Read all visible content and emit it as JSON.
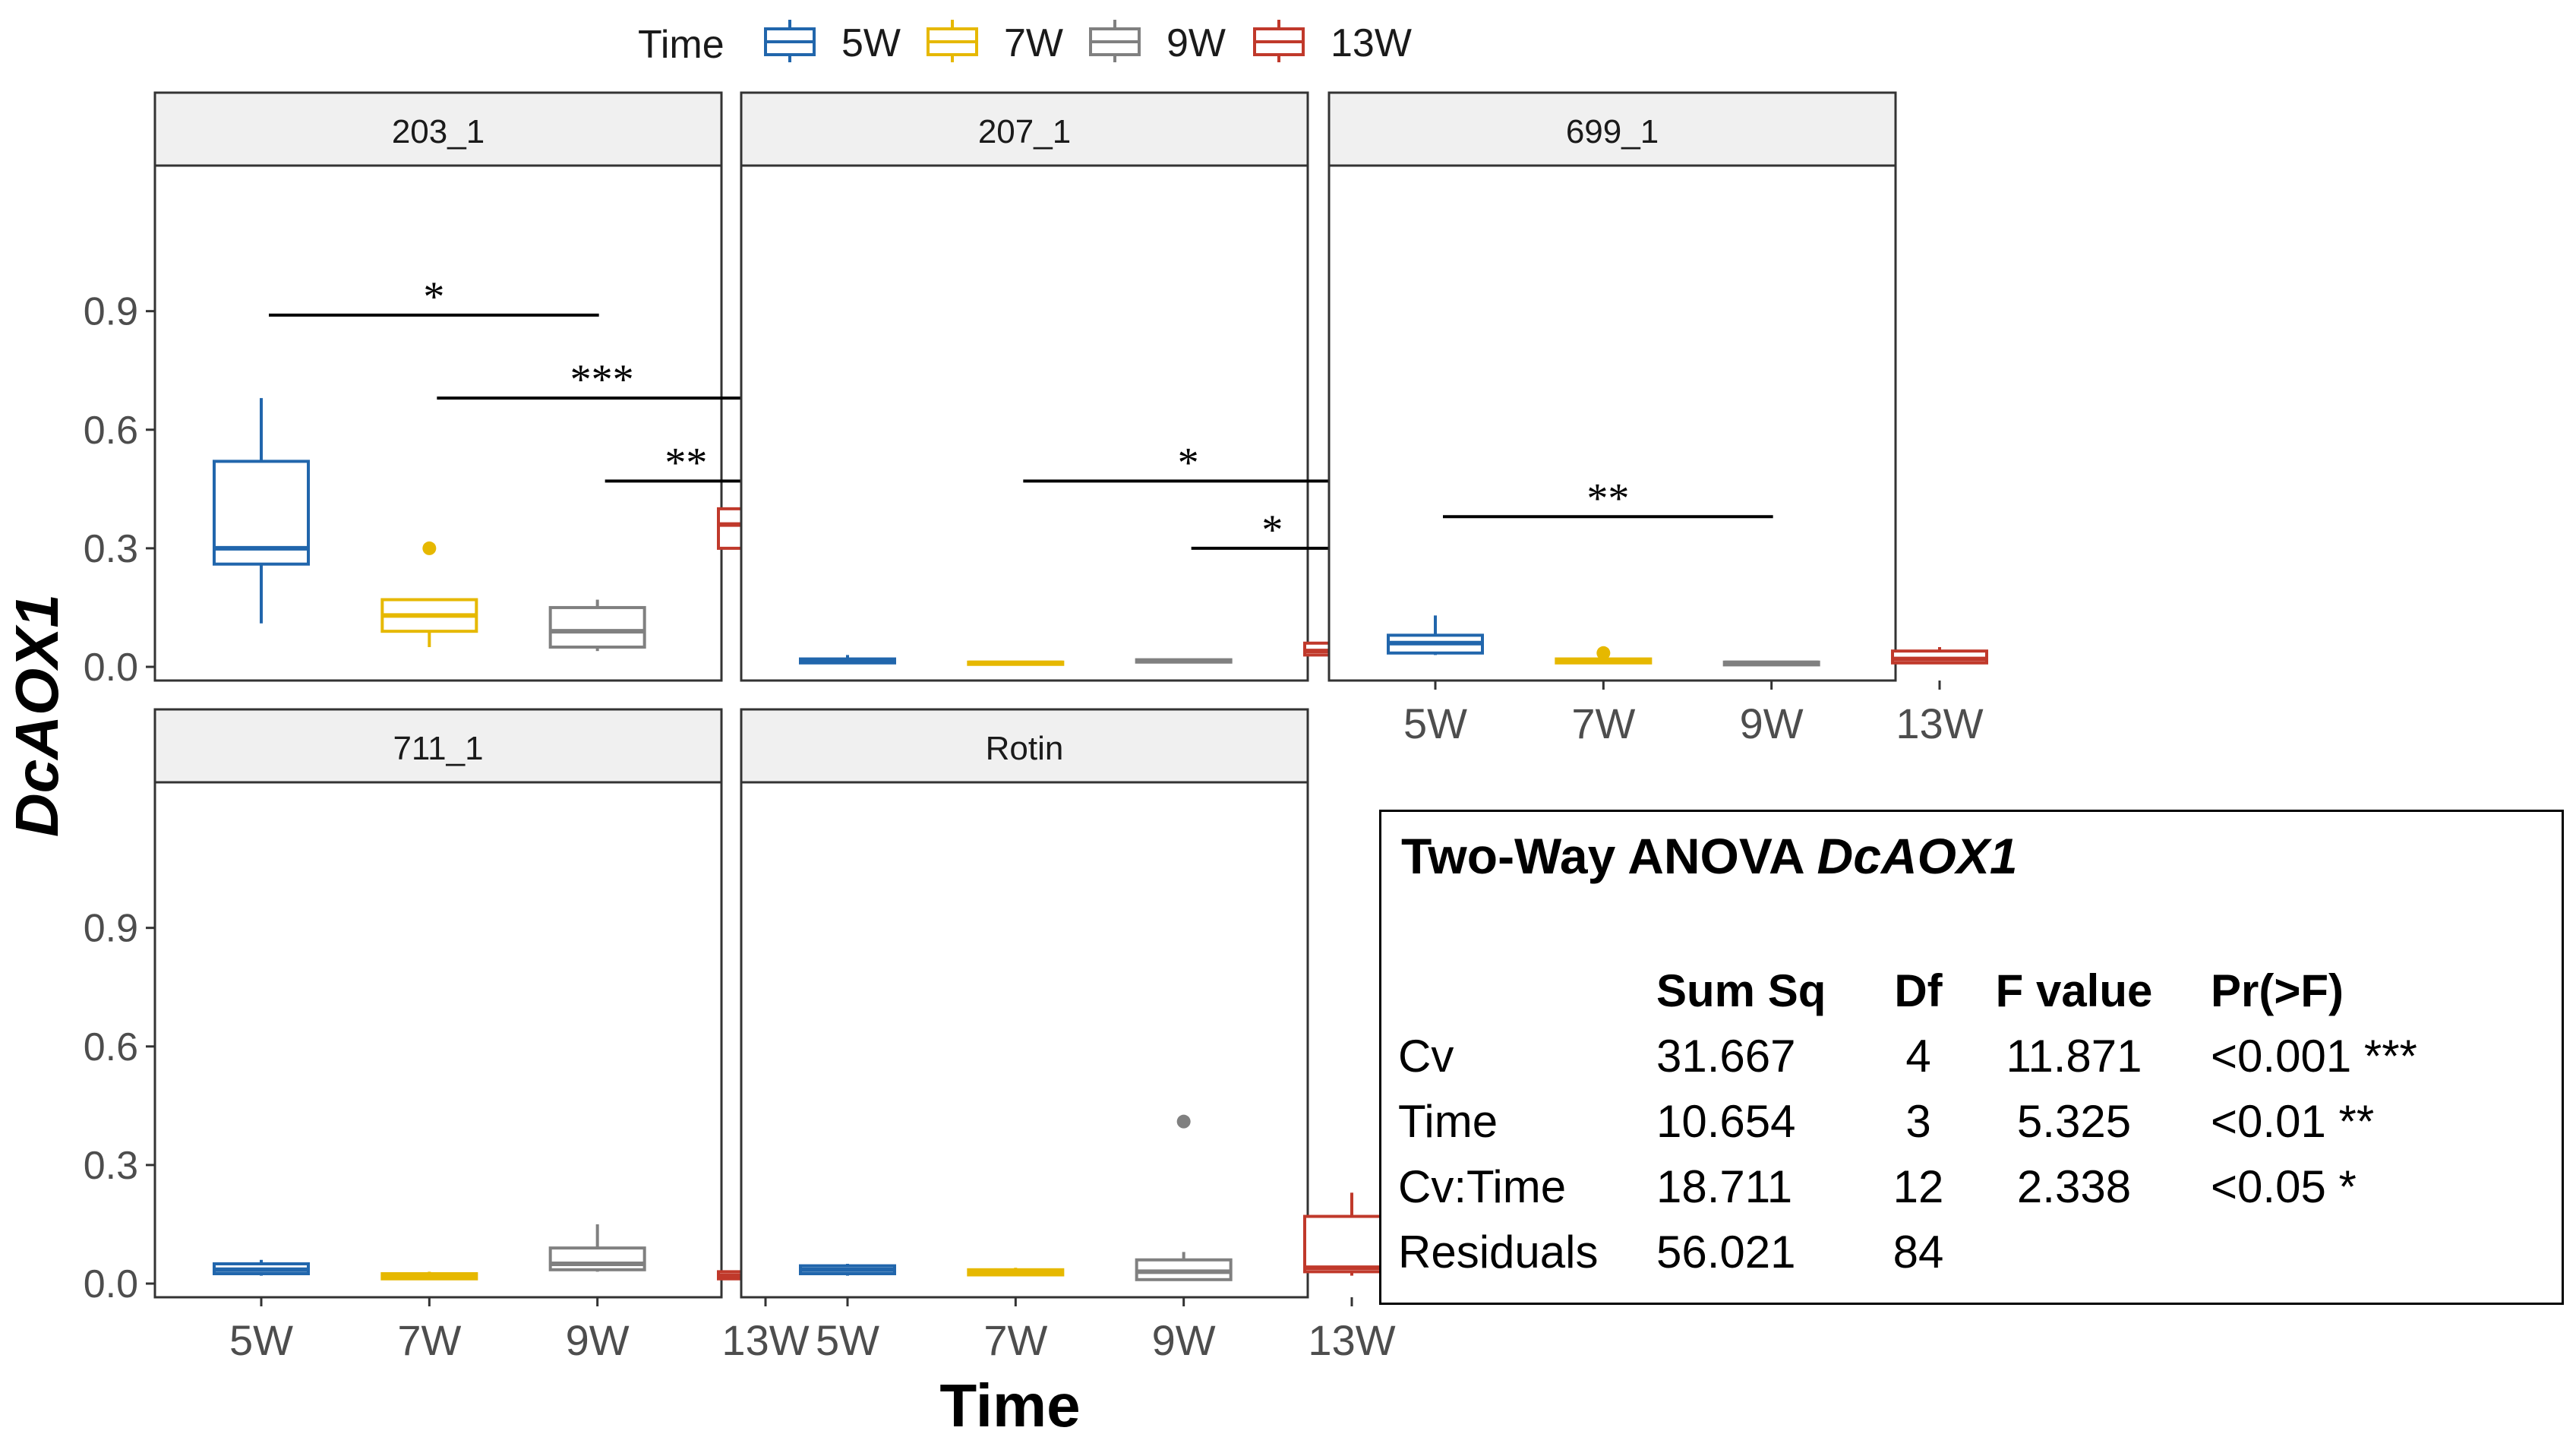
{
  "legend": {
    "title": "Time",
    "entries": [
      {
        "label": "5W",
        "color": "#2166ac"
      },
      {
        "label": "7W",
        "color": "#e6b800"
      },
      {
        "label": "9W",
        "color": "#808080"
      },
      {
        "label": "13W",
        "color": "#c0392b"
      }
    ]
  },
  "chart_data": {
    "type": "boxplot",
    "xlabel": "Time",
    "ylabel": "DcAOX1",
    "ylim": [
      0,
      1.13
    ],
    "yticks": [
      "0.0",
      "0.3",
      "0.6",
      "0.9"
    ],
    "categories": [
      "5W",
      "7W",
      "9W",
      "13W"
    ],
    "colors": [
      "#2166ac",
      "#e6b800",
      "#808080",
      "#c0392b"
    ],
    "grid": false,
    "legend_position": "top",
    "panels": [
      {
        "label": "203_1",
        "boxes": [
          {
            "category": "5W",
            "min": 0.11,
            "q1": 0.26,
            "median": 0.3,
            "q3": 0.52,
            "max": 0.68,
            "outliers": []
          },
          {
            "category": "7W",
            "min": 0.05,
            "q1": 0.09,
            "median": 0.13,
            "q3": 0.17,
            "max": 0.17,
            "outliers": [
              0.3
            ]
          },
          {
            "category": "9W",
            "min": 0.04,
            "q1": 0.05,
            "median": 0.09,
            "q3": 0.15,
            "max": 0.17,
            "outliers": []
          },
          {
            "category": "13W",
            "min": 0.3,
            "q1": 0.3,
            "median": 0.36,
            "q3": 0.4,
            "max": 0.4,
            "outliers": [
              1.13,
              0.15
            ]
          }
        ],
        "significance": [
          {
            "from": "5W",
            "to": "9W",
            "y": 0.89,
            "label": "*"
          },
          {
            "from": "7W",
            "to": "13W",
            "y": 0.68,
            "label": "***"
          },
          {
            "from": "9W",
            "to": "13W",
            "y": 0.47,
            "label": "**"
          }
        ]
      },
      {
        "label": "207_1",
        "boxes": [
          {
            "category": "5W",
            "min": 0.01,
            "q1": 0.01,
            "median": 0.015,
            "q3": 0.02,
            "max": 0.03,
            "outliers": []
          },
          {
            "category": "7W",
            "min": 0.005,
            "q1": 0.008,
            "median": 0.01,
            "q3": 0.012,
            "max": 0.015,
            "outliers": []
          },
          {
            "category": "9W",
            "min": 0.01,
            "q1": 0.012,
            "median": 0.015,
            "q3": 0.018,
            "max": 0.02,
            "outliers": []
          },
          {
            "category": "13W",
            "min": 0.02,
            "q1": 0.03,
            "median": 0.04,
            "q3": 0.06,
            "max": 0.07,
            "outliers": [
              0.11
            ]
          }
        ],
        "significance": [
          {
            "from": "7W",
            "to": "13W",
            "y": 0.47,
            "label": "*"
          },
          {
            "from": "9W",
            "to": "13W",
            "y": 0.3,
            "label": "*"
          }
        ]
      },
      {
        "label": "699_1",
        "boxes": [
          {
            "category": "5W",
            "min": 0.03,
            "q1": 0.035,
            "median": 0.06,
            "q3": 0.08,
            "max": 0.13,
            "outliers": []
          },
          {
            "category": "7W",
            "min": 0.01,
            "q1": 0.01,
            "median": 0.015,
            "q3": 0.02,
            "max": 0.03,
            "outliers": [
              0.035
            ]
          },
          {
            "category": "9W",
            "min": 0.005,
            "q1": 0.005,
            "median": 0.01,
            "q3": 0.012,
            "max": 0.015,
            "outliers": []
          },
          {
            "category": "13W",
            "min": 0.01,
            "q1": 0.01,
            "median": 0.02,
            "q3": 0.04,
            "max": 0.05,
            "outliers": []
          }
        ],
        "significance": [
          {
            "from": "5W",
            "to": "9W",
            "y": 0.38,
            "label": "**"
          }
        ]
      },
      {
        "label": "711_1",
        "boxes": [
          {
            "category": "5W",
            "min": 0.02,
            "q1": 0.025,
            "median": 0.035,
            "q3": 0.05,
            "max": 0.06,
            "outliers": []
          },
          {
            "category": "7W",
            "min": 0.01,
            "q1": 0.012,
            "median": 0.02,
            "q3": 0.025,
            "max": 0.03,
            "outliers": []
          },
          {
            "category": "9W",
            "min": 0.03,
            "q1": 0.035,
            "median": 0.05,
            "q3": 0.09,
            "max": 0.15,
            "outliers": []
          },
          {
            "category": "13W",
            "min": 0.01,
            "q1": 0.012,
            "median": 0.02,
            "q3": 0.03,
            "max": 0.03,
            "outliers": [
              0.09
            ]
          }
        ],
        "significance": []
      },
      {
        "label": "Rotin",
        "boxes": [
          {
            "category": "5W",
            "min": 0.02,
            "q1": 0.025,
            "median": 0.035,
            "q3": 0.045,
            "max": 0.05,
            "outliers": []
          },
          {
            "category": "7W",
            "min": 0.02,
            "q1": 0.022,
            "median": 0.03,
            "q3": 0.035,
            "max": 0.04,
            "outliers": []
          },
          {
            "category": "9W",
            "min": 0.01,
            "q1": 0.01,
            "median": 0.03,
            "q3": 0.06,
            "max": 0.08,
            "outliers": [
              0.41
            ]
          },
          {
            "category": "13W",
            "min": 0.02,
            "q1": 0.03,
            "median": 0.04,
            "q3": 0.17,
            "max": 0.23,
            "outliers": []
          }
        ],
        "significance": []
      }
    ]
  },
  "anova": {
    "title_prefix": "Two-Way ANOVA ",
    "title_gene": "DcAOX1",
    "headers": [
      "",
      "Sum Sq",
      "Df",
      "F value",
      "Pr(>F)"
    ],
    "rows": [
      [
        "Cv",
        "31.667",
        "4",
        "11.871",
        "<0.001 ***"
      ],
      [
        "Time",
        "10.654",
        "3",
        "5.325",
        "<0.01 **"
      ],
      [
        "Cv:Time",
        "18.711",
        "12",
        "2.338",
        "<0.05 *"
      ],
      [
        "Residuals",
        "56.021",
        "84",
        "",
        ""
      ]
    ]
  }
}
